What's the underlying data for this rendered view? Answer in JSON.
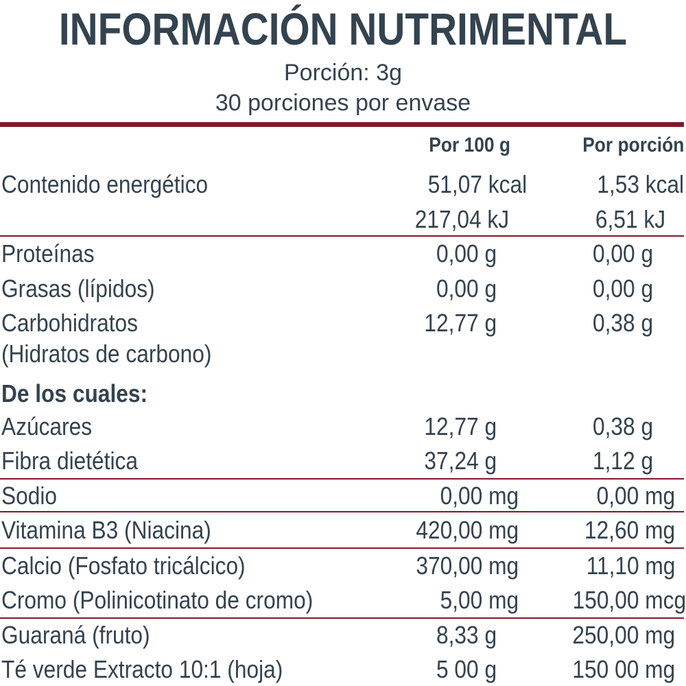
{
  "title": "INFORMACIÓN NUTRIMENTAL",
  "serving": "Porción: 3g",
  "servings_per_container": "30 porciones por envase",
  "headers": {
    "per100": "Por 100 g",
    "perServing": "Por porción"
  },
  "rows": [
    {
      "label": "Contenido energético",
      "per100": "51,07 kcal",
      "perServing": "1,53 kcal"
    },
    {
      "label": "",
      "per100": "217,04 kJ",
      "perServing": "6,51 kJ"
    },
    {
      "label": "Proteínas",
      "per100": "0,00 g",
      "perServing": "0,00 g"
    },
    {
      "label": "Grasas (lípidos)",
      "per100": "0,00 g",
      "perServing": "0,00 g"
    },
    {
      "label": "Carbohidratos",
      "per100": "12,77 g",
      "perServing": "0,38 g"
    },
    {
      "label": "(Hidratos de carbono)",
      "per100": "",
      "perServing": ""
    },
    {
      "label": "De los cuales:",
      "per100": "",
      "perServing": ""
    },
    {
      "label": "Azúcares",
      "per100": "12,77 g",
      "perServing": "0,38 g"
    },
    {
      "label": "Fibra dietética",
      "per100": "37,24 g",
      "perServing": "1,12 g"
    },
    {
      "label": "Sodio",
      "per100": "0,00 mg",
      "perServing": "0,00 mg"
    },
    {
      "label": "Vitamina B3 (Niacina)",
      "per100": "420,00 mg",
      "perServing": "12,60 mg"
    },
    {
      "label": "Calcio (Fosfato tricálcico)",
      "per100": "370,00 mg",
      "perServing": "11,10 mg"
    },
    {
      "label": "Cromo (Polinicotinato de cromo)",
      "per100": "5,00 mg",
      "perServing": "150,00 mcg"
    },
    {
      "label": "Guaraná (fruto)",
      "per100": "8,33 g",
      "perServing": "250,00 mg"
    },
    {
      "label": "Té verde Extracto 10:1 (hoja)",
      "per100": "5 00 g",
      "perServing": "150 00 mg"
    }
  ]
}
